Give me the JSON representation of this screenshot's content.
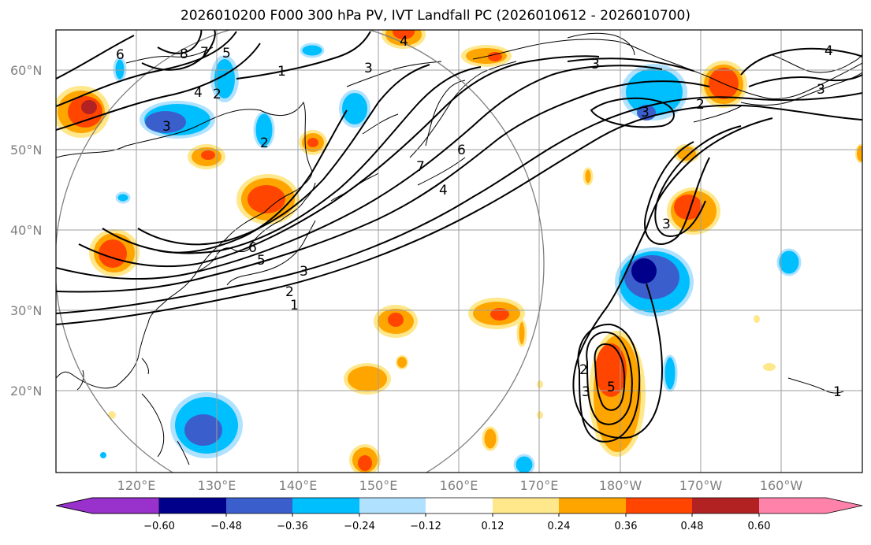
{
  "title": "2026010200 F000 300 hPa PV, IVT Landfall PC (2026010612 - 2026010700)",
  "map": {
    "lat_labels": [
      "20°N",
      "30°N",
      "40°N",
      "50°N",
      "60°N"
    ],
    "lon_labels": [
      "120°E",
      "130°E",
      "140°E",
      "150°E",
      "160°E",
      "170°E",
      "180°W",
      "170°W",
      "160°W"
    ],
    "pv_contour_labels": [
      "1",
      "2",
      "3",
      "4",
      "5",
      "6",
      "7",
      "8"
    ],
    "frame_color": "#000000",
    "grid_color": "#9e9e9e",
    "coast_color": "#000000",
    "contour_color": "#000000"
  },
  "colorbar": {
    "ticks": [
      "−0.60",
      "−0.48",
      "−0.36",
      "−0.24",
      "−0.12",
      "0.12",
      "0.24",
      "0.36",
      "0.48",
      "0.60"
    ],
    "colors": [
      "#9932cc",
      "#00008b",
      "#3a5fcd",
      "#00bfff",
      "#b0e2ff",
      "#ffffff",
      "#ffe78b",
      "#ffa500",
      "#ff4500",
      "#b22222",
      "#ff82ab"
    ]
  }
}
